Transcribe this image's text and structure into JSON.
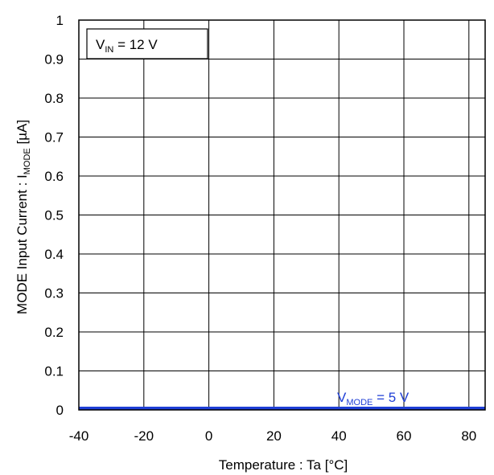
{
  "chart_data": {
    "type": "line",
    "x": [
      -40,
      -20,
      0,
      20,
      40,
      60,
      85
    ],
    "series": [
      {
        "name": "VMODE = 5 V",
        "label": {
          "main": "V",
          "sub": "MODE",
          "rest": " = 5 V"
        },
        "color": "#1f3fd6",
        "values": [
          0.0,
          0.0,
          0.0,
          0.0,
          0.0,
          0.0,
          0.0
        ]
      }
    ],
    "xlim": [
      -40,
      85
    ],
    "ylim": [
      0,
      1
    ],
    "x_ticks": [
      -40,
      -20,
      0,
      20,
      40,
      60,
      80
    ],
    "x_tick_labels": [
      "-40",
      "-20",
      "0",
      "20",
      "40",
      "60",
      "80"
    ],
    "y_ticks": [
      0,
      0.1,
      0.2,
      0.3,
      0.4,
      0.5,
      0.6,
      0.7,
      0.8,
      0.9,
      1
    ],
    "y_tick_labels": [
      "0",
      "0.1",
      "0.2",
      "0.3",
      "0.4",
      "0.5",
      "0.6",
      "0.7",
      "0.8",
      "0.9",
      "1"
    ],
    "xlabel": "Temperature : Ta [°C]",
    "ylabel": {
      "main": "MODE  Input Current : I",
      "sub": "MODE",
      "rest": " [µA]"
    },
    "grid": true,
    "annotation": {
      "main": "V",
      "sub": "IN",
      "rest": " = 12 V"
    }
  }
}
